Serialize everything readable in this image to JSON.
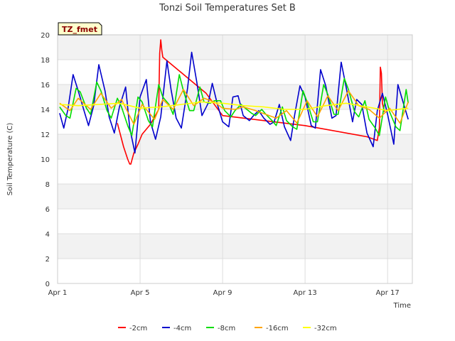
{
  "chart_data": {
    "type": "line",
    "title": "Tonzi Soil Temperatures Set B",
    "xlabel": "Time",
    "ylabel": "Soil Temperature (C)",
    "badge": "TZ_fmet",
    "xlim": [
      0,
      17.2
    ],
    "ylim": [
      0,
      20
    ],
    "x_ticks": [
      {
        "value": 0,
        "label": "Apr 1"
      },
      {
        "value": 4,
        "label": "Apr 5"
      },
      {
        "value": 8,
        "label": "Apr 9"
      },
      {
        "value": 12,
        "label": "Apr 13"
      },
      {
        "value": 16,
        "label": "Apr 17"
      }
    ],
    "y_ticks": [
      0,
      2,
      4,
      6,
      8,
      10,
      12,
      14,
      16,
      18,
      20
    ],
    "grid": true,
    "legend_position": "bottom",
    "series": [
      {
        "name": "-2cm",
        "color": "#ff0000",
        "x": [
          2.9,
          3.2,
          3.4,
          3.5,
          3.55,
          3.7,
          3.9,
          4.1,
          4.5,
          4.9,
          4.95,
          5.0,
          5.05,
          5.1,
          7.2,
          8.0,
          12.0,
          15.0,
          15.5,
          15.6,
          15.65,
          15.7,
          15.75,
          15.85
        ],
        "y": [
          12.9,
          11.0,
          10.0,
          9.6,
          9.6,
          10.5,
          11.2,
          12.0,
          12.8,
          14.0,
          18.5,
          19.6,
          18.8,
          18.2,
          15.3,
          13.5,
          12.7,
          11.8,
          11.5,
          12.5,
          17.4,
          16.9,
          14.5,
          13.8
        ],
        "dashed_from_index": -1
      },
      {
        "name": "-4cm",
        "color": "#0000cc",
        "x": [
          0.1,
          0.3,
          0.5,
          0.75,
          1.0,
          1.3,
          1.5,
          1.75,
          2.0,
          2.3,
          2.5,
          2.75,
          3.0,
          3.3,
          3.5,
          3.75,
          4.0,
          4.3,
          4.5,
          4.75,
          5.0,
          5.3,
          5.5,
          5.75,
          6.0,
          6.3,
          6.5,
          6.75,
          7.0,
          7.3,
          7.5,
          7.75,
          8.0,
          8.3,
          8.5,
          8.75,
          9.0,
          9.3,
          9.5,
          9.75,
          10.0,
          10.3,
          10.5,
          10.75,
          11.0,
          11.3,
          11.5,
          11.75,
          12.0,
          12.3,
          12.5,
          12.75,
          13.0,
          13.3,
          13.5,
          13.75,
          14.0,
          14.3,
          14.5,
          14.75,
          15.0,
          15.3,
          15.5,
          15.75,
          16.0,
          16.3,
          16.5,
          16.75,
          17.0
        ],
        "y": [
          13.7,
          12.5,
          14.0,
          16.8,
          15.5,
          13.8,
          12.7,
          14.3,
          17.6,
          15.5,
          13.4,
          12.1,
          14.2,
          15.8,
          12.5,
          10.5,
          15.0,
          16.4,
          13.0,
          11.6,
          13.4,
          17.9,
          15.6,
          13.3,
          12.5,
          15.7,
          18.6,
          16.2,
          13.5,
          14.5,
          16.1,
          14.4,
          13.0,
          12.6,
          15.0,
          15.1,
          13.5,
          13.1,
          13.5,
          13.9,
          13.3,
          12.8,
          13.0,
          14.4,
          12.6,
          11.5,
          13.6,
          15.9,
          15.0,
          12.7,
          12.5,
          17.2,
          15.9,
          13.3,
          13.5,
          17.8,
          15.7,
          13.0,
          14.8,
          14.4,
          12.1,
          11.0,
          13.9,
          15.3,
          13.6,
          11.2,
          16.0,
          14.6,
          13.2
        ],
        "dashed_from_index": -1
      },
      {
        "name": "-8cm",
        "color": "#00dd00",
        "x": [
          0.1,
          0.4,
          0.6,
          0.9,
          1.1,
          1.4,
          1.6,
          1.9,
          2.1,
          2.4,
          2.6,
          2.9,
          3.1,
          3.4,
          3.6,
          3.9,
          4.1,
          4.4,
          4.6,
          4.9,
          5.1,
          5.4,
          5.6,
          5.9,
          6.1,
          6.4,
          6.6,
          6.9,
          7.1,
          7.4,
          7.6,
          7.9,
          8.1,
          8.4,
          8.6,
          8.9,
          9.1,
          9.4,
          9.6,
          9.9,
          10.1,
          10.4,
          10.6,
          10.9,
          11.1,
          11.4,
          11.6,
          11.9,
          12.1,
          12.4,
          12.6,
          12.9,
          13.1,
          13.4,
          13.6,
          13.9,
          14.1,
          14.4,
          14.6,
          14.9,
          15.1,
          15.4,
          15.6,
          15.9,
          16.1,
          16.4,
          16.6,
          16.9,
          17.0
        ],
        "y": [
          14.2,
          13.5,
          13.3,
          15.7,
          15.4,
          14.1,
          13.6,
          16.2,
          15.5,
          13.9,
          13.3,
          14.9,
          14.2,
          12.7,
          11.9,
          15.0,
          14.6,
          13.1,
          12.6,
          16.0,
          15.0,
          14.4,
          13.6,
          16.8,
          15.5,
          13.9,
          13.9,
          15.8,
          14.6,
          14.5,
          14.7,
          14.7,
          13.9,
          13.4,
          13.9,
          14.4,
          14.1,
          13.7,
          13.5,
          14.0,
          13.6,
          13.1,
          12.7,
          14.2,
          13.1,
          12.6,
          12.4,
          15.5,
          14.6,
          13.0,
          13.0,
          16.0,
          15.2,
          13.6,
          13.6,
          16.5,
          15.6,
          13.8,
          13.4,
          14.7,
          13.2,
          12.5,
          11.9,
          15.0,
          13.8,
          12.6,
          12.3,
          15.6,
          14.5
        ],
        "dashed_from_index": -1
      },
      {
        "name": "-16cm",
        "color": "#ffa500",
        "x": [
          0.1,
          0.6,
          1.0,
          1.6,
          2.1,
          2.6,
          3.1,
          3.7,
          4.1,
          4.7,
          5.1,
          5.6,
          6.1,
          6.6,
          7.1,
          7.6,
          8.0,
          8.6,
          9.0,
          9.6,
          10.1,
          10.6,
          11.1,
          11.6,
          12.1,
          12.6,
          13.1,
          13.6,
          14.1,
          14.6,
          15.1,
          15.6,
          16.1,
          16.6,
          17.0
        ],
        "y": [
          14.5,
          13.9,
          14.9,
          14.0,
          15.3,
          14.1,
          14.8,
          12.8,
          14.4,
          13.2,
          14.8,
          14.0,
          15.6,
          14.3,
          14.9,
          14.6,
          14.1,
          14.0,
          14.2,
          13.9,
          13.6,
          13.3,
          13.9,
          12.9,
          14.7,
          13.4,
          15.1,
          13.9,
          15.5,
          14.3,
          14.0,
          13.3,
          14.1,
          12.9,
          14.6
        ],
        "dashed_from_index": -1
      },
      {
        "name": "-32cm",
        "color": "#ffff00",
        "x": [
          0.1,
          1.0,
          2.0,
          3.0,
          4.0,
          5.0,
          6.0,
          7.0,
          8.0,
          9.0,
          10.0,
          11.0,
          12.0,
          13.0,
          14.0,
          15.0,
          16.0,
          17.0
        ],
        "y": [
          14.4,
          14.3,
          14.4,
          14.5,
          14.1,
          14.2,
          14.4,
          14.6,
          14.5,
          14.3,
          14.2,
          14.0,
          14.0,
          14.3,
          14.5,
          14.2,
          13.9,
          14.1
        ],
        "dashed_from_index": -1
      }
    ]
  }
}
